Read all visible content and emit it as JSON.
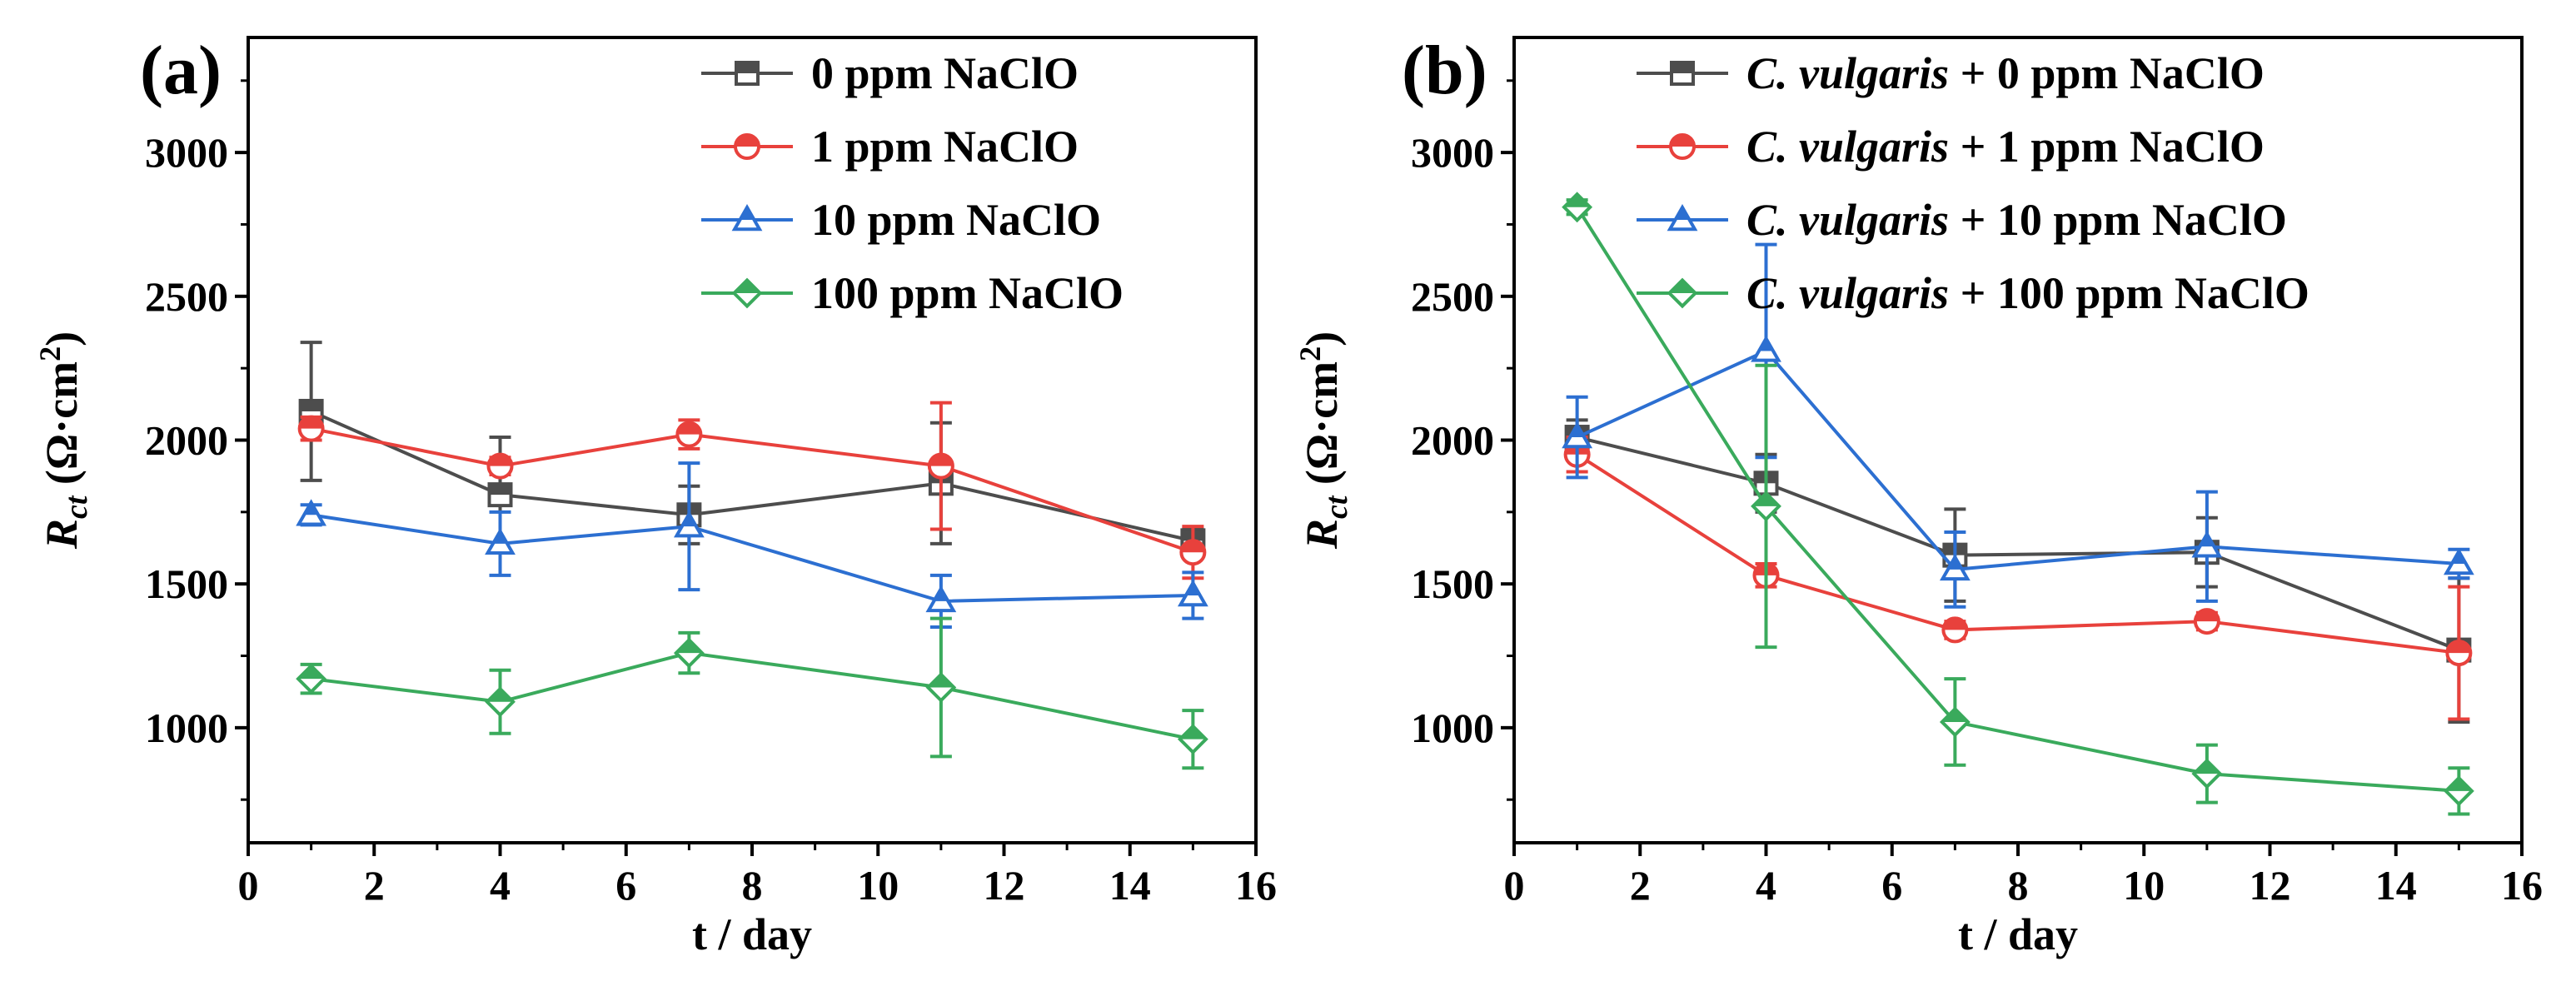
{
  "chart_data": [
    {
      "type": "line",
      "panel_label": "(a)",
      "xlabel": "t / day",
      "ylabel_main": "R",
      "ylabel_sub": "ct",
      "ylabel_unit": "(Ω·cm",
      "ylabel_sup": "2",
      "ylabel_close": ")",
      "xlim": [
        0,
        16
      ],
      "ylim": [
        600,
        3400
      ],
      "xticks": [
        0,
        2,
        4,
        6,
        8,
        10,
        12,
        14,
        16
      ],
      "yticks": [
        1000,
        1500,
        2000,
        2500,
        3000
      ],
      "legend_position": "top-right",
      "series": [
        {
          "name": "0 ppm NaClO",
          "color": "#4d4d4d",
          "marker": "square",
          "x": [
            1,
            4,
            7,
            11,
            15
          ],
          "y": [
            2100,
            1810,
            1740,
            1850,
            1650
          ],
          "err": [
            240,
            200,
            100,
            210,
            40
          ]
        },
        {
          "name": "1 ppm NaClO",
          "color": "#e8413c",
          "marker": "circle",
          "x": [
            1,
            4,
            7,
            11,
            15
          ],
          "y": [
            2040,
            1910,
            2020,
            1910,
            1610
          ],
          "err": [
            40,
            30,
            50,
            220,
            90
          ]
        },
        {
          "name": "10 ppm NaClO",
          "color": "#2c6fd1",
          "marker": "triangle",
          "x": [
            1,
            4,
            7,
            11,
            15
          ],
          "y": [
            1740,
            1640,
            1700,
            1440,
            1460
          ],
          "err": [
            35,
            110,
            220,
            90,
            80
          ]
        },
        {
          "name": "100 ppm NaClO",
          "color": "#3aaa5c",
          "marker": "diamond",
          "x": [
            1,
            4,
            7,
            11,
            15
          ],
          "y": [
            1170,
            1090,
            1260,
            1140,
            960
          ],
          "err": [
            50,
            110,
            70,
            240,
            100
          ]
        }
      ]
    },
    {
      "type": "line",
      "panel_label": "(b)",
      "xlabel": "t / day",
      "ylabel_main": "R",
      "ylabel_sub": "ct",
      "ylabel_unit": "(Ω·cm",
      "ylabel_sup": "2",
      "ylabel_close": ")",
      "xlim": [
        0,
        16
      ],
      "ylim": [
        600,
        3400
      ],
      "xticks": [
        0,
        2,
        4,
        6,
        8,
        10,
        12,
        14,
        16
      ],
      "yticks": [
        1000,
        1500,
        2000,
        2500,
        3000
      ],
      "legend_position": "top-right",
      "series": [
        {
          "name_italic": "C. vulgaris",
          "name_rest": " + 0 ppm NaClO",
          "color": "#4d4d4d",
          "marker": "square",
          "x": [
            1,
            4,
            7,
            11,
            15
          ],
          "y": [
            2010,
            1850,
            1600,
            1610,
            1270
          ],
          "err": [
            60,
            100,
            160,
            120,
            250
          ]
        },
        {
          "name_italic": "C. vulgaris",
          "name_rest": " + 1 ppm NaClO",
          "color": "#e8413c",
          "marker": "circle",
          "x": [
            1,
            4,
            7,
            11,
            15
          ],
          "y": [
            1950,
            1530,
            1340,
            1370,
            1260
          ],
          "err": [
            60,
            40,
            30,
            30,
            230
          ]
        },
        {
          "name_italic": "C. vulgaris",
          "name_rest": " + 10 ppm NaClO",
          "color": "#2c6fd1",
          "marker": "triangle",
          "x": [
            1,
            4,
            7,
            11,
            15
          ],
          "y": [
            2010,
            2310,
            1550,
            1630,
            1570
          ],
          "err": [
            140,
            370,
            130,
            190,
            50
          ]
        },
        {
          "name_italic": "C. vulgaris",
          "name_rest": " + 100 ppm NaClO",
          "color": "#3aaa5c",
          "marker": "diamond",
          "x": [
            1,
            4,
            7,
            11,
            15
          ],
          "y": [
            2810,
            1770,
            1020,
            840,
            780
          ],
          "err": [
            25,
            490,
            150,
            100,
            80
          ]
        }
      ]
    }
  ]
}
